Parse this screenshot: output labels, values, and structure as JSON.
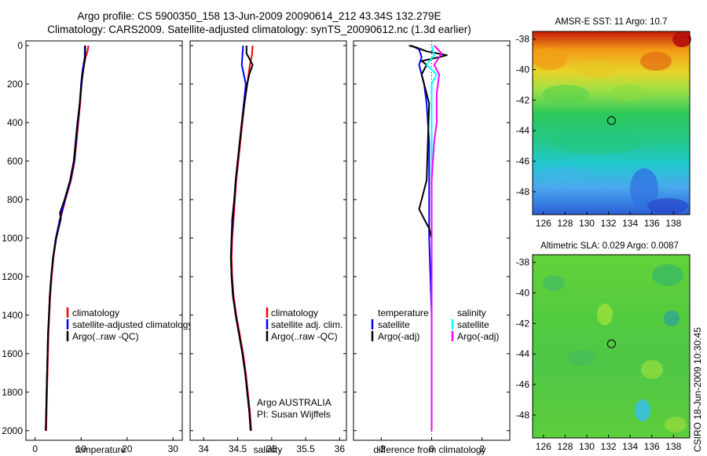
{
  "header": {
    "line1": "Argo profile: CS 5900350_158 13-Jun-2009 20090614_212 43.34S 132.279E",
    "line2": "Climatology: CARS2009. Satellite-adjusted climatology: synTS_20090612.nc (1.3d earlier)"
  },
  "colors": {
    "climatology": "#ff0000",
    "satellite": "#0000ff",
    "argo": "#000000",
    "sat_salinity": "#00ffff",
    "argo_salinity": "#ff00ff"
  },
  "chart_data": [
    {
      "type": "line",
      "panel": "temperature",
      "xlabel": "temperature",
      "ylabel": "",
      "xlim": [
        -2,
        32
      ],
      "ylim": [
        2050,
        0
      ],
      "xticks": [
        "0",
        "10",
        "20",
        "30"
      ],
      "yticks": [
        "0",
        "200",
        "400",
        "600",
        "800",
        "1000",
        "1200",
        "1400",
        "1600",
        "1800",
        "2000"
      ],
      "legend": [
        "climatology",
        "satellite-adjusted climatology",
        "Argo(..raw -QC)"
      ],
      "legend_location": "lower-middle",
      "series": [
        {
          "name": "climatology",
          "color": "red",
          "points": [
            [
              11.6,
              0
            ],
            [
              11.4,
              30
            ],
            [
              11.0,
              60
            ],
            [
              10.6,
              100
            ],
            [
              10.3,
              150
            ],
            [
              10.1,
              200
            ],
            [
              9.8,
              300
            ],
            [
              9.4,
              400
            ],
            [
              9.0,
              500
            ],
            [
              8.6,
              600
            ],
            [
              7.8,
              700
            ],
            [
              6.6,
              800
            ],
            [
              5.5,
              900
            ],
            [
              4.6,
              1000
            ],
            [
              4.0,
              1100
            ],
            [
              3.6,
              1200
            ],
            [
              3.3,
              1300
            ],
            [
              3.1,
              1400
            ],
            [
              2.9,
              1500
            ],
            [
              2.8,
              1600
            ],
            [
              2.7,
              1700
            ],
            [
              2.6,
              1800
            ],
            [
              2.5,
              1900
            ],
            [
              2.4,
              2000
            ]
          ]
        },
        {
          "name": "satellite-adjusted climatology",
          "color": "blue",
          "points": [
            [
              10.8,
              0
            ],
            [
              10.8,
              30
            ],
            [
              10.8,
              60
            ],
            [
              10.5,
              100
            ],
            [
              10.2,
              150
            ],
            [
              10.0,
              200
            ],
            [
              9.7,
              300
            ],
            [
              9.3,
              400
            ],
            [
              8.9,
              500
            ],
            [
              8.5,
              600
            ],
            [
              7.7,
              700
            ],
            [
              6.5,
              800
            ],
            [
              5.4,
              900
            ],
            [
              4.5,
              1000
            ],
            [
              3.9,
              1100
            ],
            [
              3.5,
              1200
            ],
            [
              3.2,
              1300
            ],
            [
              3.0,
              1400
            ],
            [
              2.8,
              1500
            ],
            [
              2.7,
              1600
            ],
            [
              2.6,
              1700
            ],
            [
              2.5,
              1800
            ],
            [
              2.4,
              1900
            ],
            [
              2.3,
              2000
            ]
          ]
        },
        {
          "name": "Argo(..raw -QC)",
          "color": "black",
          "points": [
            [
              10.9,
              0
            ],
            [
              10.9,
              40
            ],
            [
              10.8,
              80
            ],
            [
              10.6,
              110
            ],
            [
              10.4,
              140
            ],
            [
              10.1,
              200
            ],
            [
              9.7,
              300
            ],
            [
              9.2,
              400
            ],
            [
              8.8,
              500
            ],
            [
              8.4,
              600
            ],
            [
              7.6,
              700
            ],
            [
              6.4,
              800
            ],
            [
              5.4,
              870
            ],
            [
              5.6,
              900
            ],
            [
              4.6,
              1000
            ],
            [
              3.9,
              1100
            ],
            [
              3.5,
              1200
            ],
            [
              3.2,
              1300
            ],
            [
              3.0,
              1400
            ],
            [
              2.8,
              1500
            ],
            [
              2.7,
              1600
            ],
            [
              2.6,
              1700
            ],
            [
              2.5,
              1800
            ],
            [
              2.4,
              1900
            ],
            [
              2.3,
              2000
            ]
          ]
        }
      ]
    },
    {
      "type": "line",
      "panel": "salinity",
      "xlabel": "salinity",
      "ylabel": "",
      "xlim": [
        33.8,
        36.1
      ],
      "ylim": [
        2050,
        0
      ],
      "xticks": [
        "34",
        "34.5",
        "35",
        "35.5",
        "36"
      ],
      "legend": [
        "climatology",
        "satellite adj. clim.",
        "Argo(..raw -QC)"
      ],
      "legend_location": "lower-right",
      "annotations": [
        "Argo AUSTRALIA",
        "PI: Susan Wijffels"
      ],
      "series": [
        {
          "name": "climatology",
          "color": "red",
          "points": [
            [
              34.72,
              0
            ],
            [
              34.71,
              50
            ],
            [
              34.68,
              100
            ],
            [
              34.64,
              200
            ],
            [
              34.6,
              300
            ],
            [
              34.57,
              400
            ],
            [
              34.54,
              500
            ],
            [
              34.51,
              600
            ],
            [
              34.48,
              700
            ],
            [
              34.46,
              800
            ],
            [
              34.44,
              900
            ],
            [
              34.42,
              1000
            ],
            [
              34.41,
              1100
            ],
            [
              34.42,
              1200
            ],
            [
              34.44,
              1300
            ],
            [
              34.48,
              1400
            ],
            [
              34.53,
              1500
            ],
            [
              34.58,
              1600
            ],
            [
              34.62,
              1700
            ],
            [
              34.65,
              1800
            ],
            [
              34.68,
              1900
            ],
            [
              34.7,
              2000
            ]
          ]
        },
        {
          "name": "satellite adj. clim.",
          "color": "blue",
          "points": [
            [
              34.58,
              0
            ],
            [
              34.57,
              50
            ],
            [
              34.56,
              100
            ],
            [
              34.62,
              200
            ],
            [
              34.59,
              300
            ],
            [
              34.56,
              400
            ],
            [
              34.53,
              500
            ],
            [
              34.5,
              600
            ],
            [
              34.47,
              700
            ],
            [
              34.45,
              800
            ],
            [
              34.43,
              900
            ],
            [
              34.41,
              1000
            ],
            [
              34.4,
              1100
            ],
            [
              34.41,
              1200
            ],
            [
              34.43,
              1300
            ],
            [
              34.47,
              1400
            ],
            [
              34.52,
              1500
            ],
            [
              34.57,
              1600
            ],
            [
              34.61,
              1700
            ],
            [
              34.64,
              1800
            ],
            [
              34.67,
              1900
            ],
            [
              34.69,
              2000
            ]
          ]
        },
        {
          "name": "Argo(..raw -QC)",
          "color": "black",
          "points": [
            [
              34.63,
              0
            ],
            [
              34.63,
              40
            ],
            [
              34.72,
              100
            ],
            [
              34.67,
              150
            ],
            [
              34.64,
              200
            ],
            [
              34.6,
              300
            ],
            [
              34.56,
              400
            ],
            [
              34.53,
              500
            ],
            [
              34.5,
              600
            ],
            [
              34.47,
              700
            ],
            [
              34.45,
              800
            ],
            [
              34.42,
              900
            ],
            [
              34.41,
              1000
            ],
            [
              34.4,
              1100
            ],
            [
              34.41,
              1200
            ],
            [
              34.43,
              1300
            ],
            [
              34.47,
              1400
            ],
            [
              34.52,
              1500
            ],
            [
              34.57,
              1600
            ],
            [
              34.61,
              1700
            ],
            [
              34.64,
              1800
            ],
            [
              34.67,
              1900
            ],
            [
              34.69,
              2000
            ]
          ]
        }
      ]
    },
    {
      "type": "line",
      "panel": "difference",
      "xlabel": "difference from climatology",
      "ylabel": "",
      "xlim": [
        -3.1,
        3.1
      ],
      "ylim": [
        2050,
        0
      ],
      "xticks": [
        "-2",
        "0",
        "2"
      ],
      "legend": [
        "temperature",
        "satellite",
        "Argo(-adj)",
        "salinity",
        "satellite",
        "Argo(-adj)"
      ],
      "legend_location": "lower-middle",
      "series": [
        {
          "name": "satellite",
          "group": "temperature",
          "color": "blue",
          "points": [
            [
              -0.8,
              0
            ],
            [
              -0.5,
              20
            ],
            [
              -0.4,
              60
            ],
            [
              -0.5,
              100
            ],
            [
              -0.3,
              200
            ],
            [
              -0.2,
              300
            ],
            [
              -0.1,
              500
            ],
            [
              -0.1,
              800
            ],
            [
              -0.1,
              1000
            ],
            [
              0.0,
              1400
            ],
            [
              0.0,
              2000
            ]
          ]
        },
        {
          "name": "Argo(-adj)",
          "group": "temperature",
          "color": "black",
          "points": [
            [
              -0.9,
              0
            ],
            [
              -0.6,
              10
            ],
            [
              -0.2,
              30
            ],
            [
              0.6,
              50
            ],
            [
              0.3,
              60
            ],
            [
              -0.4,
              80
            ],
            [
              -0.2,
              100
            ],
            [
              -0.4,
              150
            ],
            [
              -0.1,
              300
            ],
            [
              -0.2,
              700
            ],
            [
              -0.4,
              800
            ],
            [
              -0.5,
              850
            ],
            [
              -0.3,
              900
            ],
            [
              -0.1,
              950
            ],
            [
              0.0,
              1000
            ],
            [
              0.0,
              1400
            ],
            [
              0.0,
              2000
            ]
          ]
        },
        {
          "name": "satellite",
          "group": "salinity",
          "color": "cyan",
          "points": [
            [
              0.0,
              0
            ],
            [
              0.1,
              50
            ],
            [
              -0.2,
              100
            ],
            [
              0.2,
              150
            ],
            [
              0.0,
              200
            ],
            [
              0.0,
              400
            ],
            [
              0.0,
              800
            ],
            [
              0.0,
              1000
            ],
            [
              0.0,
              1400
            ],
            [
              0.0,
              2000
            ]
          ]
        },
        {
          "name": "Argo(-adj)",
          "group": "salinity",
          "color": "magenta",
          "points": [
            [
              0.1,
              0
            ],
            [
              0.4,
              40
            ],
            [
              0.1,
              100
            ],
            [
              0.3,
              150
            ],
            [
              0.2,
              250
            ],
            [
              0.2,
              400
            ],
            [
              0.1,
              500
            ],
            [
              0.0,
              700
            ],
            [
              0.0,
              1000
            ],
            [
              0.0,
              2000
            ]
          ]
        }
      ]
    },
    {
      "type": "heatmap",
      "panel": "sst-map",
      "title": "AMSR-E SST: 11 Argo: 10.7",
      "xticks": [
        "126",
        "128",
        "130",
        "132",
        "134",
        "136",
        "138"
      ],
      "yticks": [
        "-38",
        "-40",
        "-42",
        "-44",
        "-46",
        "-48"
      ],
      "xlim": [
        125,
        139.5
      ],
      "ylim": [
        -49.5,
        -37.5
      ],
      "marker": {
        "lon": 132.279,
        "lat": -43.34
      },
      "description_values": {
        "north": "warm (orange/red)",
        "south": "cool (cyan/blue)"
      }
    },
    {
      "type": "heatmap",
      "panel": "sla-map",
      "title": "Altimetric SLA: 0.029 Argo: 0.0087",
      "xticks": [
        "126",
        "128",
        "130",
        "132",
        "134",
        "136",
        "138"
      ],
      "yticks": [
        "-38",
        "-40",
        "-42",
        "-44",
        "-46",
        "-48"
      ],
      "xlim": [
        125,
        139.5
      ],
      "ylim": [
        -49.5,
        -37.5
      ],
      "marker": {
        "lon": 132.279,
        "lat": -43.34
      }
    }
  ],
  "side_label": "CSIRO 18-Jun-2009 10:30:45"
}
